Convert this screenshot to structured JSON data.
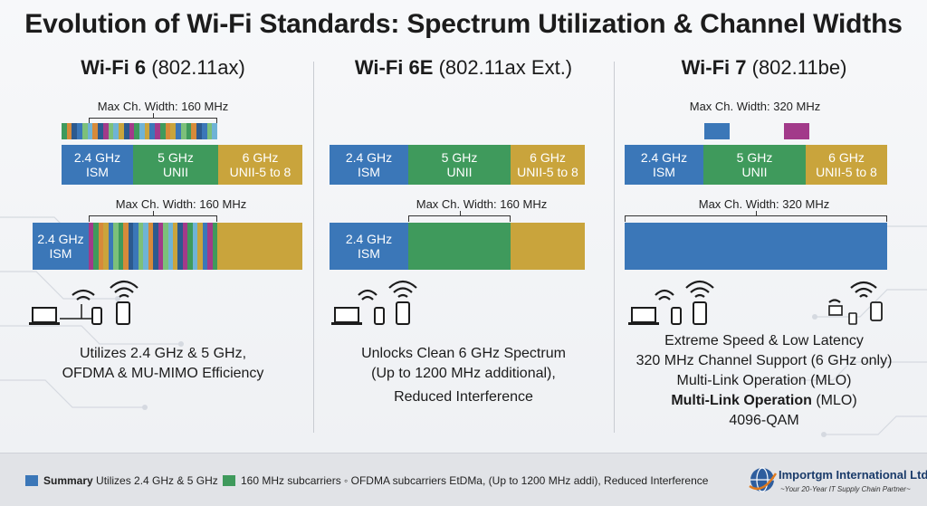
{
  "title": "Evolution of Wi-Fi Standards: Spectrum Utilization & Channel Widths",
  "colors": {
    "blue": "#3b77b8",
    "green": "#3f9a5c",
    "gold": "#c9a43c",
    "purple": "#a23a8a"
  },
  "columns": [
    {
      "name": "Wi-Fi 6",
      "spec": "(802.11ax)",
      "top_caption": "Max Ch. Width: 160 MHz",
      "bands": [
        {
          "name": "2.4 GHz",
          "sub": "ISM"
        },
        {
          "name": "5 GHz",
          "sub": "UNII"
        },
        {
          "name": "6 GHz",
          "sub": "UNII-5 to 8"
        }
      ],
      "mid_caption": "Max Ch. Width: 160 MHz",
      "big_band": {
        "name": "2.4 GHz",
        "sub": "ISM"
      },
      "desc": [
        "Utilizes 2.4 GHz & 5 GHz,",
        "OFDMA & MU-MIMO Efficiency"
      ]
    },
    {
      "name": "Wi-Fi 6E",
      "spec": "(802.11ax Ext.)",
      "bands": [
        {
          "name": "2.4 GHz",
          "sub": "ISM"
        },
        {
          "name": "5 GHz",
          "sub": "UNII"
        },
        {
          "name": "6 GHz",
          "sub": "UNII-5 to 8"
        }
      ],
      "mid_caption": "Max Ch. Width: 160 MHz",
      "big_band": {
        "name": "2.4 GHz",
        "sub": "ISM"
      },
      "desc": [
        "Unlocks Clean 6 GHz Spectrum",
        "(Up to 1200 MHz additional),",
        "Reduced Interference"
      ]
    },
    {
      "name": "Wi-Fi 7",
      "spec": "(802.11be)",
      "top_caption": "Max Ch. Width: 320 MHz",
      "bands": [
        {
          "name": "2.4 GHz",
          "sub": "ISM"
        },
        {
          "name": "5 GHz",
          "sub": "UNII"
        },
        {
          "name": "6 GHz",
          "sub": "UNII-5 to 8"
        }
      ],
      "mid_caption": "Max Ch. Width: 320 MHz",
      "desc": [
        "Extreme Speed & Low Latency",
        "320 MHz Channel Support (6 GHz only)",
        "Multi-Link Operation (MLO)"
      ],
      "desc_bold": "Multi-Link Operation",
      "desc_bold_rest": " (MLO)",
      "desc_last": "4096-QAM"
    }
  ],
  "footer": {
    "legend1_bold": "Summary",
    "legend1_text": " Utilizes 2.4 GHz & 5 GHz",
    "legend2_text": "160 MHz subcarriers ◦ OFDMA subcarriers EtDMa, (Up to 1200 MHz addi), Reduced Interference",
    "company": "Importgm International Ltd",
    "tagline": "~Your 20-Year IT Supply Chain Partner~"
  }
}
